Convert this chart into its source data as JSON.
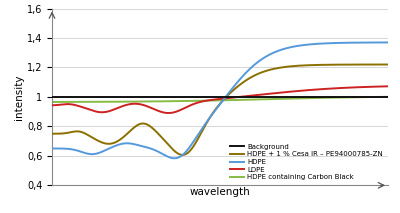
{
  "title": "",
  "xlabel": "wavelength",
  "ylabel": "intensity",
  "xlim": [
    0,
    1
  ],
  "ylim": [
    0.4,
    1.6
  ],
  "yticks": [
    0.4,
    0.6,
    0.8,
    1.0,
    1.2,
    1.4,
    1.6
  ],
  "ytick_labels": [
    "0,4",
    "0,6",
    "0,8",
    "1",
    "1,2",
    "1,4",
    "1,6"
  ],
  "background_color": "#ffffff",
  "grid_color": "#d0d0d0",
  "series": {
    "background": {
      "color": "#111111",
      "label": "Background",
      "lw": 1.4
    },
    "hdpe_cesa": {
      "color": "#8B7000",
      "label": "HDPE + 1 % Cesa IR – PE94000785-ZN",
      "lw": 1.4
    },
    "hdpe": {
      "color": "#5599dd",
      "label": "HDPE",
      "lw": 1.4
    },
    "ldpe": {
      "color": "#cc2222",
      "label": "LDPE",
      "lw": 1.4
    },
    "hdpe_carbon": {
      "color": "#88bb44",
      "label": "HDPE containing Carbon Black",
      "lw": 1.4
    }
  }
}
